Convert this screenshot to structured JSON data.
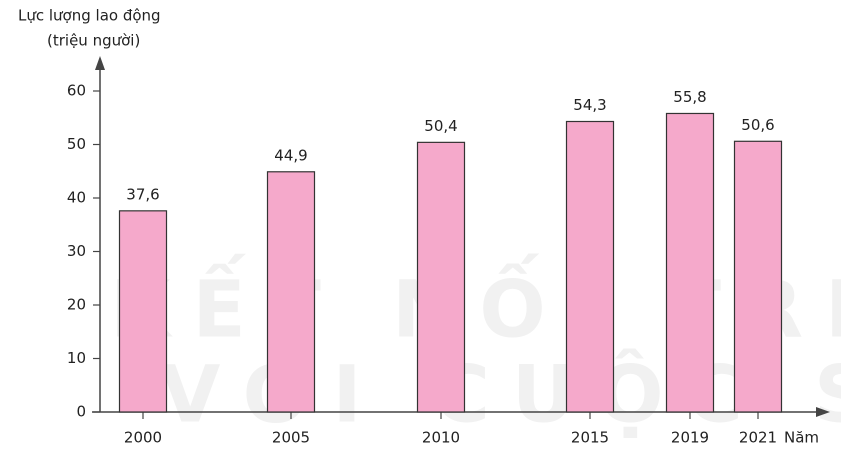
{
  "chart_data": {
    "type": "bar",
    "y_label": "Lực lượng lao động",
    "y_unit": "(triệu người)",
    "x_label": "Năm",
    "watermark": [
      "KẾT NỐI TRI THỨC",
      "VỚI CUỘC SỐNG"
    ],
    "categories": [
      "2000",
      "2005",
      "2010",
      "2015",
      "2019",
      "2021"
    ],
    "values": [
      37.6,
      44.9,
      50.4,
      54.3,
      55.8,
      50.6
    ],
    "value_labels": [
      "37,6",
      "44,9",
      "50,4",
      "54,3",
      "55,8",
      "50,6"
    ],
    "color": "#f5a9cb",
    "ylim": [
      0,
      60
    ],
    "yticks": [
      0,
      10,
      20,
      30,
      40,
      50,
      60
    ]
  }
}
